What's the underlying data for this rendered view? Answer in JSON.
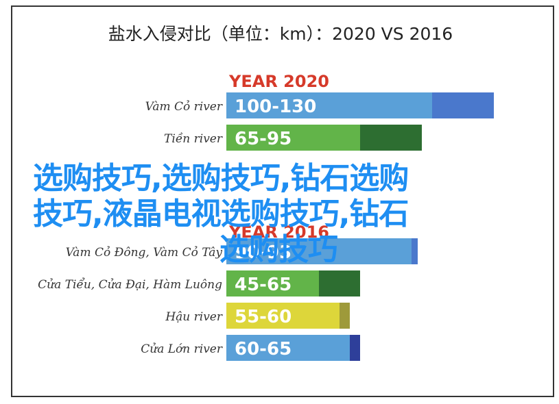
{
  "title": "盐水入侵对比（单位：km）：2020 VS 2016",
  "watermark": {
    "line1": "选购技巧,选购技巧,钻石选购",
    "line2": "技巧,液晶电视选购技巧,钻石",
    "line3": "选购技巧"
  },
  "chart_data": {
    "type": "bar",
    "groups": [
      {
        "heading": "YEAR 2020",
        "heading_color": "#d63a2a",
        "rows": [
          {
            "category": "Vàm Cỏ river",
            "label": "100-130",
            "min": 100,
            "max": 130,
            "color": "#5aa0d8",
            "ext_color": "#4a78cc"
          },
          {
            "category": "Tiền river",
            "label": "65-95",
            "min": 65,
            "max": 95,
            "color": "#62b449",
            "ext_color": "#2d6e31"
          }
        ]
      },
      {
        "heading": "YEAR 2016",
        "heading_color": "#d63a2a",
        "rows": [
          {
            "category": "Vàm Cỏ Đông, Vàm Cỏ Tây",
            "label": "90-93",
            "min": 90,
            "max": 93,
            "color": "#5aa0d8",
            "ext_color": "#4a78cc"
          },
          {
            "category": "Cửa Tiểu, Cửa Đại, Hàm Luông",
            "label": "45-65",
            "min": 45,
            "max": 65,
            "color": "#62b449",
            "ext_color": "#2d6e31"
          },
          {
            "category": "Hậu river",
            "label": "55-60",
            "min": 55,
            "max": 60,
            "color": "#ddd63a",
            "ext_color": "#9e9a3a"
          },
          {
            "category": "Cửa Lớn river",
            "label": "60-65",
            "min": 60,
            "max": 65,
            "color": "#5aa0d8",
            "ext_color": "#2e3f9a"
          }
        ]
      }
    ]
  }
}
